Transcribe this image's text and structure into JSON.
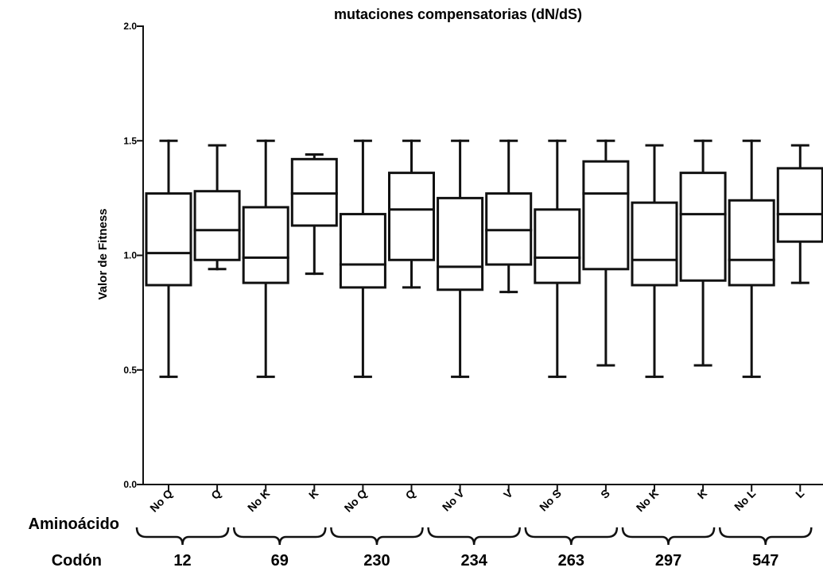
{
  "chart_data": {
    "type": "boxplot",
    "title": "mutaciones compensatorias (dN/dS)",
    "xlabel": "",
    "ylabel": "Valor de Fitness",
    "ylim": [
      0.0,
      2.0
    ],
    "yticks": [
      "0.0",
      "0.5",
      "1.0",
      "1.5",
      "2.0"
    ],
    "row_labels": {
      "aminoacid": "Aminoácido",
      "codon": "Codón"
    },
    "categories": [
      "No Q",
      "Q",
      "No K",
      "K",
      "No Q",
      "Q",
      "No V",
      "V",
      "No S",
      "S",
      "No K",
      "K",
      "No L",
      "L"
    ],
    "groups": [
      {
        "codon": "12",
        "categories": [
          0,
          1
        ]
      },
      {
        "codon": "69",
        "categories": [
          2,
          3
        ]
      },
      {
        "codon": "230",
        "categories": [
          4,
          5
        ]
      },
      {
        "codon": "234",
        "categories": [
          6,
          7
        ]
      },
      {
        "codon": "263",
        "categories": [
          8,
          9
        ]
      },
      {
        "codon": "297",
        "categories": [
          10,
          11
        ]
      },
      {
        "codon": "547",
        "categories": [
          12,
          13
        ]
      }
    ],
    "series": [
      {
        "values": [
          {
            "min": 0.47,
            "q1": 0.87,
            "median": 1.01,
            "q3": 1.27,
            "max": 1.5
          },
          {
            "min": 0.94,
            "q1": 0.98,
            "median": 1.11,
            "q3": 1.28,
            "max": 1.48
          },
          {
            "min": 0.47,
            "q1": 0.88,
            "median": 0.99,
            "q3": 1.21,
            "max": 1.5
          },
          {
            "min": 0.92,
            "q1": 1.13,
            "median": 1.27,
            "q3": 1.42,
            "max": 1.44
          },
          {
            "min": 0.47,
            "q1": 0.86,
            "median": 0.96,
            "q3": 1.18,
            "max": 1.5
          },
          {
            "min": 0.86,
            "q1": 0.98,
            "median": 1.2,
            "q3": 1.36,
            "max": 1.5
          },
          {
            "min": 0.47,
            "q1": 0.85,
            "median": 0.95,
            "q3": 1.25,
            "max": 1.5
          },
          {
            "min": 0.84,
            "q1": 0.96,
            "median": 1.11,
            "q3": 1.27,
            "max": 1.5
          },
          {
            "min": 0.47,
            "q1": 0.88,
            "median": 0.99,
            "q3": 1.2,
            "max": 1.5
          },
          {
            "min": 0.52,
            "q1": 0.94,
            "median": 1.27,
            "q3": 1.41,
            "max": 1.5
          },
          {
            "min": 0.47,
            "q1": 0.87,
            "median": 0.98,
            "q3": 1.23,
            "max": 1.48
          },
          {
            "min": 0.52,
            "q1": 0.89,
            "median": 1.18,
            "q3": 1.36,
            "max": 1.5
          },
          {
            "min": 0.47,
            "q1": 0.87,
            "median": 0.98,
            "q3": 1.24,
            "max": 1.5
          },
          {
            "min": 0.88,
            "q1": 1.06,
            "median": 1.18,
            "q3": 1.38,
            "max": 1.48
          }
        ]
      }
    ],
    "grid": false,
    "legend": "none",
    "colors": {
      "stroke": "#111111",
      "fill": "#ffffff"
    }
  }
}
